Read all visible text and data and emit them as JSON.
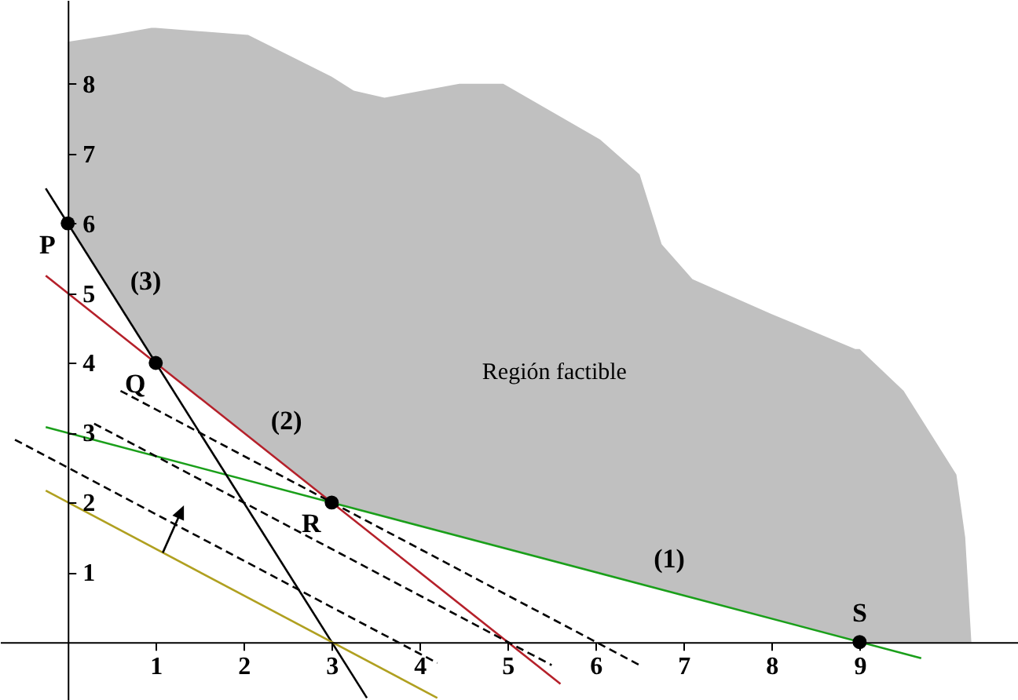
{
  "chart_data": {
    "type": "line",
    "xlim": [
      -0.77,
      10.8
    ],
    "ylim": [
      -0.83,
      9.2
    ],
    "xticks": [
      1,
      2,
      3,
      4,
      5,
      6,
      7,
      8,
      9
    ],
    "yticks": [
      1,
      2,
      3,
      4,
      5,
      6,
      7,
      8
    ],
    "grid": false,
    "series": [
      {
        "type": "area",
        "color": "#c0c0c0",
        "x": [
          0,
          0.5,
          0.95,
          1,
          2.05,
          3,
          3.25,
          3.6,
          4.45,
          4.95,
          6.05,
          6.5,
          6.75,
          7.1,
          8,
          8.95,
          9,
          9.5,
          10.1,
          10.2,
          10.27
        ],
        "values": [
          8.6,
          8.7,
          8.8,
          8.8,
          8.7,
          8.1,
          7.9,
          7.8,
          8.0,
          8.0,
          7.2,
          6.7,
          5.7,
          5.2,
          4.7,
          4.2,
          4.2,
          3.6,
          2.4,
          1.5,
          0
        ]
      },
      {
        "color": "#1a9f1a",
        "line_style": "solid",
        "x": [
          -0.25,
          9.7
        ],
        "values": [
          3.08,
          -0.23
        ]
      },
      {
        "color": "#b5202a",
        "line_style": "solid",
        "x": [
          -0.25,
          5.6
        ],
        "values": [
          5.25,
          -0.6
        ]
      },
      {
        "color": "#000000",
        "line_style": "solid",
        "x": [
          -0.25,
          3.4
        ],
        "values": [
          6.5,
          -0.8
        ]
      },
      {
        "color": "#b0a020",
        "line_style": "solid",
        "x": [
          -0.25,
          4.2
        ],
        "values": [
          2.17,
          -0.8
        ]
      },
      {
        "color": "#000000",
        "line_style": "dashed",
        "x": [
          -0.6,
          4.2
        ],
        "values": [
          2.9,
          -0.3
        ]
      },
      {
        "color": "#000000",
        "line_style": "dashed",
        "x": [
          0.3,
          5.5
        ],
        "values": [
          3.13,
          -0.33
        ]
      },
      {
        "color": "#000000",
        "line_style": "dashed",
        "x": [
          0.6,
          6.5
        ],
        "values": [
          3.6,
          -0.33
        ]
      },
      {
        "type": "scatter",
        "color": "#000000",
        "marker": "circle",
        "x": [
          0,
          1,
          3,
          9
        ],
        "values": [
          6,
          4,
          2,
          0
        ]
      }
    ],
    "annotations": [
      {
        "text": "P",
        "x": 0,
        "y": 6
      },
      {
        "text": "Q",
        "x": 1,
        "y": 4
      },
      {
        "text": "R",
        "x": 3,
        "y": 2
      },
      {
        "text": "S",
        "x": 9,
        "y": 0
      },
      {
        "text": "(1)",
        "x": 6.55,
        "y": 0.82
      },
      {
        "text": "(2)",
        "x": 2.2,
        "y": 2.8
      },
      {
        "text": "(3)",
        "x": 0.6,
        "y": 4.8
      },
      "Región factible"
    ]
  }
}
